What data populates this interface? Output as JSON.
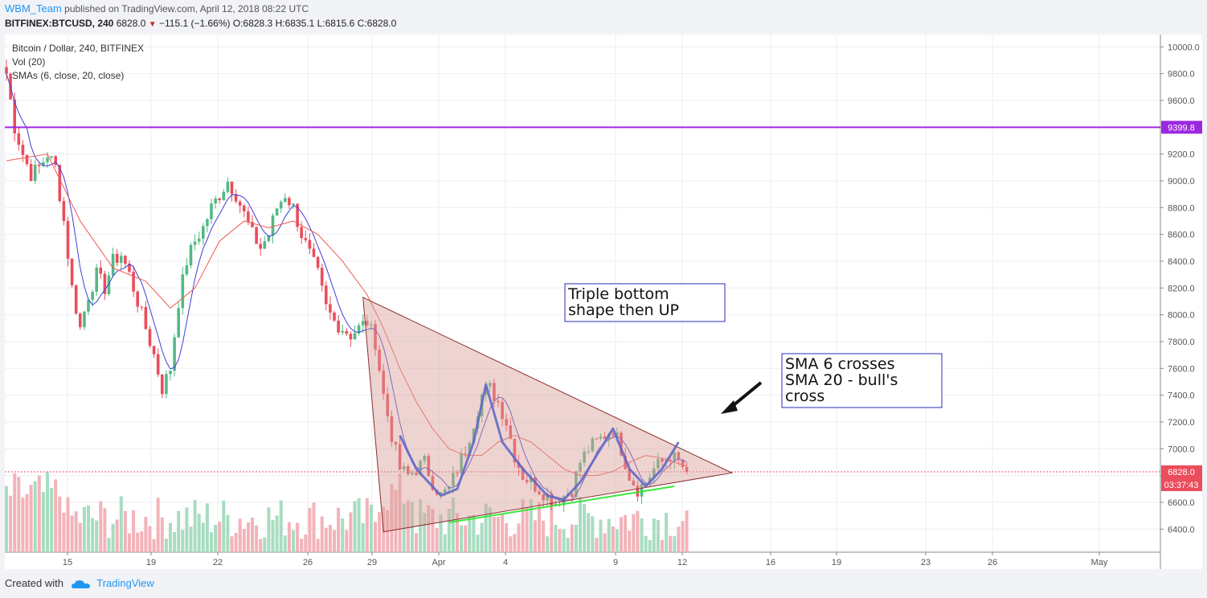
{
  "header": {
    "publisher": "WBM_Team",
    "published_text": "published on TradingView.com, April 12, 2018 08:22 UTC",
    "symbol": "BITFINEX:BTCUSD, 240",
    "last": "6828.0",
    "change": "−115.1 (−1.66%)",
    "ohlc": "O:6828.3 H:6835.1 L:6815.6 C:6828.0"
  },
  "legend": {
    "line1": "Bitcoin / Dollar, 240, BITFINEX",
    "line2": "Vol (20)",
    "line3": "SMAs (6, close, 20, close)"
  },
  "footer": {
    "created_with": "Created with",
    "brand": "TradingView"
  },
  "annotations": {
    "box1": [
      "Triple bottom",
      "shape then UP"
    ],
    "box2": [
      "SMA 6 crosses",
      "SMA 20 - bull's",
      "cross"
    ]
  },
  "price_labels": {
    "hline": "9399.8",
    "last": "6828.0",
    "countdown": "03:37:43"
  },
  "colors": {
    "up": "#53b987",
    "down": "#eb4d5c",
    "sma6": "#3f3fd6",
    "sma20": "#f05a50",
    "hline": "#9c27e0",
    "triangle": "#d9a09a",
    "support": "#39e839",
    "text": "#2196f3"
  },
  "chart_data": {
    "type": "candlestick",
    "symbol": "BITFINEX:BTCUSD",
    "interval": "240",
    "ylim": [
      6250,
      10150
    ],
    "y_ticks": [
      6400,
      6600,
      6800,
      7000,
      7200,
      7400,
      7600,
      7800,
      8000,
      8200,
      8400,
      8600,
      8800,
      9000,
      9200,
      9400,
      9600,
      9800,
      10000
    ],
    "x_tick_labels": [
      "15",
      "19",
      "22",
      "26",
      "29",
      "Apr",
      "4",
      "9",
      "12",
      "16",
      "19",
      "23",
      "26",
      "May"
    ],
    "horizontal_line": 9399.8,
    "last_price": 6828.0,
    "close_path": [
      [
        0,
        9800
      ],
      [
        2,
        9400
      ],
      [
        4,
        9200
      ],
      [
        6,
        9050
      ],
      [
        8,
        9100
      ],
      [
        10,
        9200
      ],
      [
        12,
        9100
      ],
      [
        14,
        8700
      ],
      [
        16,
        8200
      ],
      [
        18,
        7900
      ],
      [
        20,
        8150
      ],
      [
        22,
        8300
      ],
      [
        24,
        8200
      ],
      [
        26,
        8400
      ],
      [
        28,
        8450
      ],
      [
        30,
        8300
      ],
      [
        32,
        8100
      ],
      [
        34,
        7900
      ],
      [
        36,
        7700
      ],
      [
        38,
        7450
      ],
      [
        40,
        7600
      ],
      [
        42,
        8100
      ],
      [
        44,
        8400
      ],
      [
        46,
        8550
      ],
      [
        48,
        8650
      ],
      [
        50,
        8800
      ],
      [
        52,
        8900
      ],
      [
        54,
        9000
      ],
      [
        56,
        8900
      ],
      [
        58,
        8750
      ],
      [
        60,
        8600
      ],
      [
        62,
        8500
      ],
      [
        64,
        8600
      ],
      [
        66,
        8800
      ],
      [
        68,
        8900
      ],
      [
        70,
        8800
      ],
      [
        72,
        8600
      ],
      [
        74,
        8450
      ],
      [
        76,
        8300
      ],
      [
        78,
        8050
      ],
      [
        80,
        7950
      ],
      [
        82,
        7900
      ],
      [
        84,
        7850
      ],
      [
        86,
        7900
      ],
      [
        88,
        7950
      ],
      [
        90,
        7800
      ],
      [
        92,
        7400
      ],
      [
        94,
        7100
      ],
      [
        96,
        6850
      ],
      [
        98,
        6800
      ],
      [
        100,
        6850
      ],
      [
        102,
        6900
      ],
      [
        104,
        6750
      ],
      [
        106,
        6650
      ],
      [
        108,
        6700
      ],
      [
        110,
        6850
      ],
      [
        112,
        7000
      ],
      [
        114,
        7200
      ],
      [
        116,
        7400
      ],
      [
        118,
        7450
      ],
      [
        120,
        7350
      ],
      [
        122,
        7200
      ],
      [
        124,
        6950
      ],
      [
        126,
        6800
      ],
      [
        128,
        6750
      ],
      [
        130,
        6700
      ],
      [
        132,
        6650
      ],
      [
        134,
        6600
      ],
      [
        136,
        6650
      ],
      [
        138,
        6700
      ],
      [
        140,
        6900
      ],
      [
        142,
        7000
      ],
      [
        144,
        7050
      ],
      [
        146,
        7100
      ],
      [
        148,
        7150
      ],
      [
        150,
        7000
      ],
      [
        152,
        6800
      ],
      [
        154,
        6700
      ],
      [
        156,
        6750
      ],
      [
        158,
        6850
      ],
      [
        160,
        6900
      ],
      [
        162,
        6950
      ],
      [
        164,
        6900
      ],
      [
        166,
        6828
      ]
    ],
    "sma20_path": [
      [
        0,
        9150
      ],
      [
        10,
        9200
      ],
      [
        18,
        8700
      ],
      [
        26,
        8350
      ],
      [
        34,
        8250
      ],
      [
        40,
        8050
      ],
      [
        46,
        8200
      ],
      [
        52,
        8550
      ],
      [
        58,
        8700
      ],
      [
        64,
        8650
      ],
      [
        70,
        8700
      ],
      [
        76,
        8600
      ],
      [
        82,
        8400
      ],
      [
        88,
        8150
      ],
      [
        92,
        7900
      ],
      [
        96,
        7600
      ],
      [
        100,
        7350
      ],
      [
        104,
        7150
      ],
      [
        108,
        7000
      ],
      [
        112,
        6950
      ],
      [
        116,
        6950
      ],
      [
        120,
        7050
      ],
      [
        124,
        7100
      ],
      [
        128,
        7050
      ],
      [
        132,
        6950
      ],
      [
        136,
        6850
      ],
      [
        140,
        6800
      ],
      [
        144,
        6800
      ],
      [
        148,
        6830
      ],
      [
        152,
        6900
      ],
      [
        156,
        6950
      ],
      [
        160,
        6930
      ],
      [
        166,
        6870
      ]
    ],
    "pattern_triangle": [
      [
        87,
        8130
      ],
      [
        92,
        6380
      ],
      [
        177,
        6820
      ]
    ],
    "support_line": [
      [
        108,
        6450
      ],
      [
        163,
        6720
      ]
    ],
    "triple_bottom_path": [
      [
        96,
        7100
      ],
      [
        100,
        6850
      ],
      [
        106,
        6650
      ],
      [
        110,
        6700
      ],
      [
        114,
        7050
      ],
      [
        117,
        7480
      ],
      [
        121,
        7050
      ],
      [
        126,
        6850
      ],
      [
        132,
        6650
      ],
      [
        136,
        6620
      ],
      [
        140,
        6750
      ],
      [
        144,
        6950
      ],
      [
        148,
        7150
      ],
      [
        152,
        6850
      ],
      [
        156,
        6720
      ],
      [
        160,
        6850
      ],
      [
        164,
        7050
      ]
    ]
  }
}
